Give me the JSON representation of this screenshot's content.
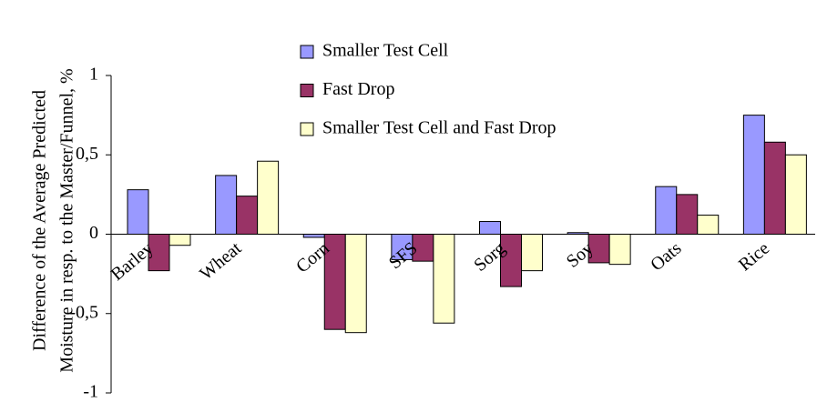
{
  "chart_data": {
    "type": "bar",
    "ylabel": [
      "Difference of the Average Predicted",
      "Moisture in resp. to the Master/Funnel, %"
    ],
    "categories": [
      "Barley",
      "Wheat",
      "Corn",
      "SFS",
      "Sorg",
      "Soy",
      "Oats",
      "Rice"
    ],
    "series": [
      {
        "name": "Smaller Test Cell",
        "color": "#9999ff",
        "values": [
          0.28,
          0.37,
          -0.02,
          -0.16,
          0.08,
          0.01,
          0.3,
          0.75
        ]
      },
      {
        "name": "Fast Drop",
        "color": "#993366",
        "values": [
          -0.23,
          0.24,
          -0.6,
          -0.17,
          -0.33,
          -0.18,
          0.25,
          0.58
        ]
      },
      {
        "name": "Smaller Test Cell and Fast Drop",
        "color": "#ffffcc",
        "values": [
          -0.07,
          0.46,
          -0.62,
          -0.56,
          -0.23,
          -0.19,
          0.12,
          0.5
        ]
      }
    ],
    "ylim": [
      -1,
      1
    ],
    "yticks": [
      -1,
      {
        "value": -0.5,
        "label": "-0,5"
      },
      0,
      {
        "value": 0.5,
        "label": "0,5"
      },
      1
    ],
    "legend": "top"
  }
}
